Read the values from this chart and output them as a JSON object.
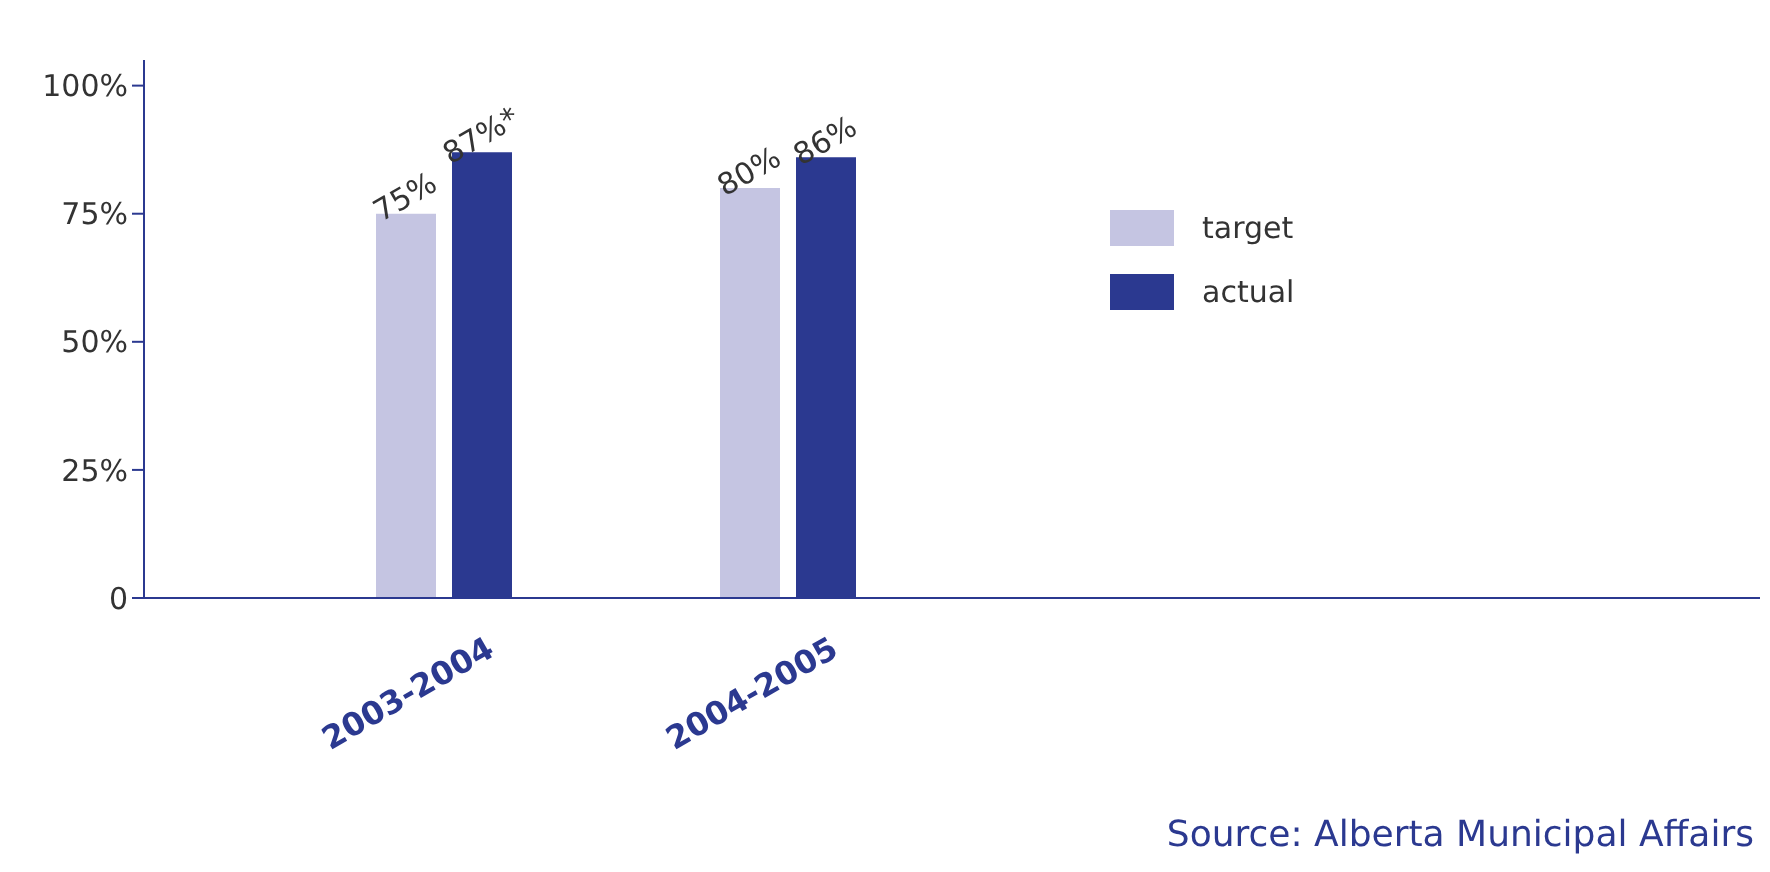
{
  "chart_data": {
    "type": "bar",
    "categories": [
      "2003-2004",
      "2004-2005"
    ],
    "series": [
      {
        "name": "target",
        "color": "#c5c5e2",
        "values": [
          75,
          80
        ],
        "value_labels": [
          "75%",
          "80%"
        ]
      },
      {
        "name": "actual",
        "color": "#2b3990",
        "values": [
          87,
          86
        ],
        "value_labels": [
          "87%*",
          "86%"
        ]
      }
    ],
    "ylim": [
      0,
      105
    ],
    "yticks": [
      0,
      {
        "value": 25,
        "label": "25%"
      },
      {
        "value": 50,
        "label": "50%"
      },
      {
        "value": 75,
        "label": "75%"
      },
      {
        "value": 100,
        "label": "100%"
      }
    ],
    "grid": false,
    "legend": "right",
    "annotations": [
      "Source: Alberta Municipal Affairs"
    ]
  }
}
